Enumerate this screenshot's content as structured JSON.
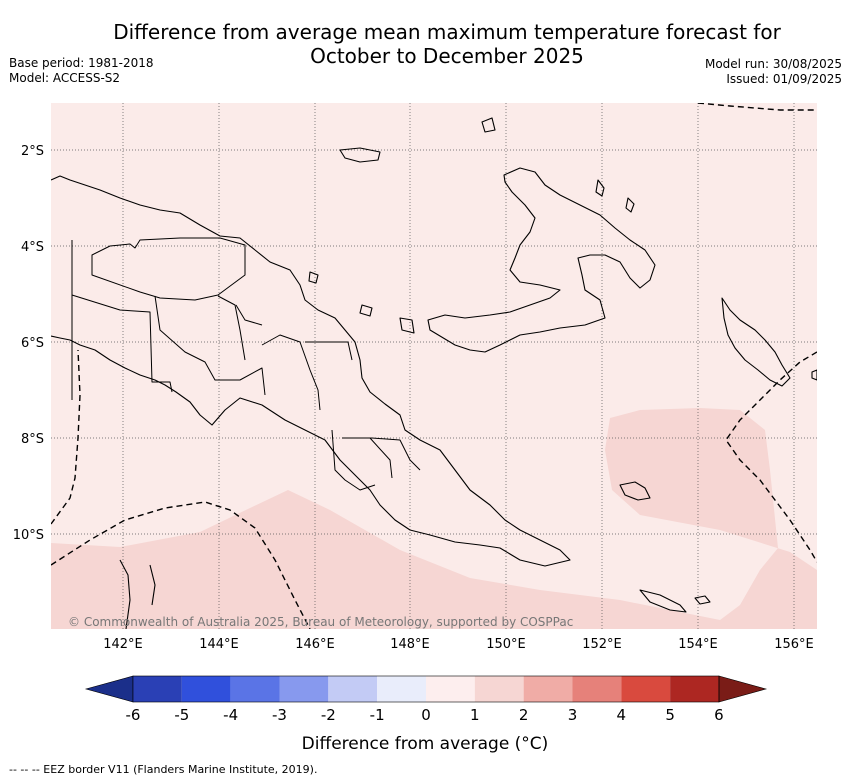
{
  "header": {
    "title_line1": "Difference from average mean maximum temperature forecast for",
    "title_line2": "October to December 2025",
    "base_period": "Base period: 1981-2018",
    "model": "Model: ACCESS-S2",
    "model_run": "Model run: 30/08/2025",
    "issued": "Issued: 01/09/2025"
  },
  "map": {
    "lat_labels": [
      "2°S",
      "4°S",
      "6°S",
      "8°S",
      "10°S"
    ],
    "lon_labels": [
      "142°E",
      "144°E",
      "146°E",
      "148°E",
      "150°E",
      "152°E",
      "154°E",
      "156°E"
    ],
    "copyright": "© Commonwealth of Australia 2025, Bureau of Meteorology, supported by COSPPac",
    "background_color": "#fbebe9",
    "anomaly_color": "#f6d6d3"
  },
  "legend": {
    "ticks": [
      "-6",
      "-5",
      "-4",
      "-3",
      "-2",
      "-1",
      "0",
      "1",
      "2",
      "3",
      "4",
      "5",
      "6"
    ],
    "colors": [
      "#2a40b5",
      "#3050dc",
      "#5a74e6",
      "#8799ee",
      "#c3cbf5",
      "#e9edfb",
      "#fdeeee",
      "#f6d6d3",
      "#f0aca6",
      "#e6817a",
      "#d94a3e",
      "#ad2722"
    ],
    "under_color": "#1b2f8a",
    "over_color": "#7a1c17",
    "label": "Difference from average (°C)"
  },
  "footer": {
    "eez_note": "-- -- -- EEZ border V11 (Flanders Marine Institute, 2019)."
  }
}
